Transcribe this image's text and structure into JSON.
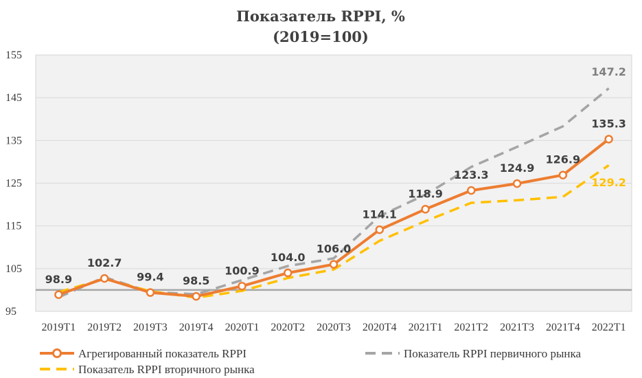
{
  "chart_data": {
    "type": "line",
    "title": "Показатель RPPI, %",
    "subtitle": "(2019=100)",
    "categories": [
      "2019T1",
      "2019T2",
      "2019T3",
      "2019T4",
      "2020T1",
      "2020T2",
      "2020T3",
      "2020T4",
      "2021T1",
      "2021T2",
      "2021T3",
      "2021T4",
      "2022T1"
    ],
    "y_ticks": [
      "95",
      "105",
      "115",
      "125",
      "135",
      "145",
      "155"
    ],
    "ylim": [
      95,
      155
    ],
    "reference_line": 100,
    "grid": true,
    "legend_position": "bottom",
    "series": [
      {
        "name": "Агрегированный показатель RPPI",
        "color": "#ED7D31",
        "style": "solid-markers",
        "values": [
          98.9,
          102.7,
          99.4,
          98.5,
          100.9,
          104.0,
          106.0,
          114.1,
          118.9,
          123.3,
          124.9,
          126.9,
          135.3
        ],
        "labels": [
          "98.9",
          "102.7",
          "99.4",
          "98.5",
          "100.9",
          "104.0",
          "106.0",
          "114.1",
          "118.9",
          "123.3",
          "124.9",
          "126.9",
          "135.3"
        ]
      },
      {
        "name": "Показатель RPPI первичного рынка",
        "color": "#A5A5A5",
        "style": "dashed",
        "values": [
          98.3,
          103.0,
          99.5,
          99.0,
          102.3,
          105.6,
          107.4,
          117.3,
          122.3,
          128.8,
          133.5,
          138.3,
          147.2
        ],
        "end_label": "147.2"
      },
      {
        "name": "Показатель RPPI вторичного рынка",
        "color": "#FFC000",
        "style": "dashed",
        "values": [
          99.5,
          102.6,
          99.7,
          98.2,
          99.8,
          102.8,
          104.8,
          111.5,
          116.1,
          120.4,
          121.0,
          121.8,
          129.2
        ],
        "end_label": "129.2"
      }
    ]
  }
}
